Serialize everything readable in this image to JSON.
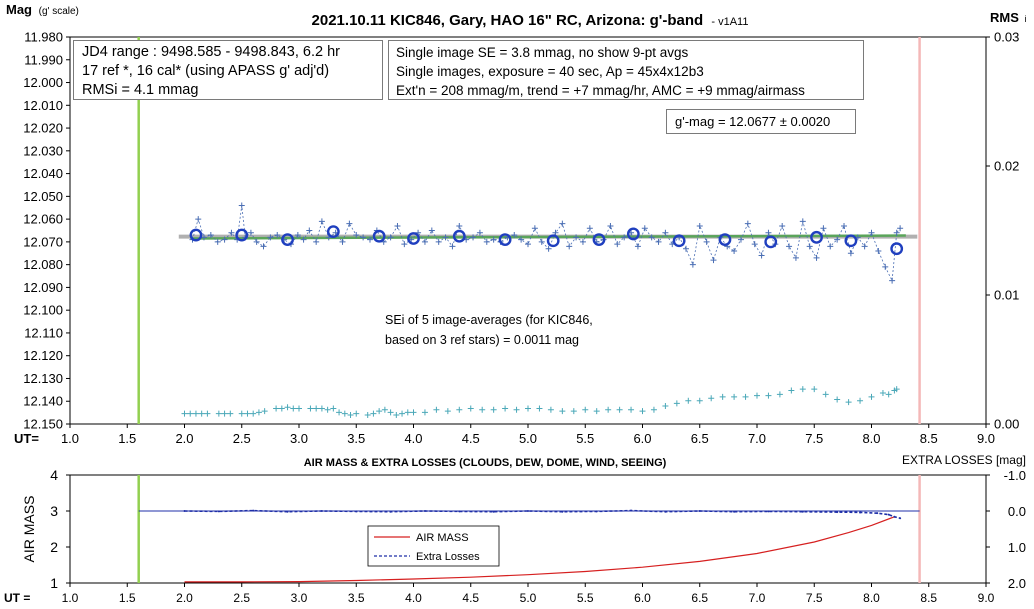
{
  "chart_data": [
    {
      "type": "scatter",
      "title": "2021.10.11 KIC846, Gary, HAO 16\" RC, Arizona: g'-band",
      "title_suffix": "- v1A11",
      "ylabel": "Mag",
      "ylabel_suffix": "(g' scale)",
      "y2label": "RMS",
      "y2label_suffix": "i",
      "xlabel": "UT=",
      "xlim": [
        1.0,
        9.0
      ],
      "ylim": [
        11.98,
        12.15
      ],
      "y_inverted": true,
      "y2lim": [
        0.0,
        0.03
      ],
      "x_ticks": [
        "1.0",
        "1.5",
        "2.0",
        "2.5",
        "3.0",
        "3.5",
        "4.0",
        "4.5",
        "5.0",
        "5.5",
        "6.0",
        "6.5",
        "7.0",
        "7.5",
        "8.0",
        "8.5",
        "9.0"
      ],
      "y_ticks": [
        "11.980",
        "11.990",
        "12.000",
        "12.010",
        "12.020",
        "12.030",
        "12.040",
        "12.050",
        "12.060",
        "12.070",
        "12.080",
        "12.090",
        "12.100",
        "12.110",
        "12.120",
        "12.130",
        "12.140",
        "12.150"
      ],
      "y2_ticks": [
        "0.03",
        "0.02",
        "0.01",
        "0.00"
      ],
      "vlines": [
        {
          "x": 1.6,
          "color": "#92d050"
        },
        {
          "x": 8.42,
          "color": "#f4b8b8"
        }
      ],
      "fit_line": {
        "x": [
          1.95,
          8.4
        ],
        "y": 12.0677
      },
      "trend_line": {
        "x": [
          2.05,
          8.3
        ],
        "y": [
          12.0685,
          12.0672
        ]
      },
      "info_boxes": {
        "left": [
          "JD4 range : 9498.585 - 9498.843,  6.2  hr",
          "17 ref *, 16 cal* (using APASS g' adj'd)",
          "RMSi = 4.1 mmag"
        ],
        "right": [
          "Single image SE = 3.8 mmag, no show  9-pt avgs",
          "Single images, exposure = 40 sec, Ap = 45x4x12b3",
          "Ext'n = 208 mmag/m, trend = +7 mmag/hr, AMC = +9 mmag/airmass"
        ],
        "result": "g'-mag = 12.0677 ± 0.0020",
        "sei": [
          "SEi of 5 image-averages (for KIC846,",
          "based on 3 ref stars) = 0.0011 mag"
        ]
      },
      "series": [
        {
          "type": "markers",
          "marker": "open-circle",
          "color": "#1f3fbf",
          "x": [
            2.1,
            2.5,
            2.9,
            3.3,
            3.7,
            4.0,
            4.4,
            4.8,
            5.22,
            5.62,
            5.92,
            6.32,
            6.72,
            7.12,
            7.52,
            7.82,
            8.22
          ],
          "y": [
            12.067,
            12.067,
            12.069,
            12.0655,
            12.0675,
            12.0685,
            12.0675,
            12.069,
            12.0695,
            12.069,
            12.0665,
            12.0695,
            12.069,
            12.07,
            12.068,
            12.0695,
            12.073
          ]
        },
        {
          "type": "crosses-dashed",
          "color": "#4a6eb4",
          "x": [
            2.07,
            2.12,
            2.17,
            2.23,
            2.29,
            2.35,
            2.41,
            2.46,
            2.5,
            2.53,
            2.58,
            2.63,
            2.69,
            2.75,
            2.81,
            2.87,
            2.93,
            2.99,
            3.04,
            3.09,
            3.15,
            3.2,
            3.26,
            3.32,
            3.38,
            3.44,
            3.5,
            3.56,
            3.62,
            3.68,
            3.74,
            3.8,
            3.86,
            3.92,
            3.98,
            4.04,
            4.1,
            4.16,
            4.22,
            4.28,
            4.34,
            4.4,
            4.46,
            4.52,
            4.58,
            4.64,
            4.7,
            4.76,
            4.82,
            4.88,
            4.94,
            5.0,
            5.06,
            5.12,
            5.18,
            5.24,
            5.3,
            5.36,
            5.42,
            5.48,
            5.54,
            5.6,
            5.66,
            5.72,
            5.78,
            5.84,
            5.9,
            5.96,
            6.02,
            6.08,
            6.14,
            6.2,
            6.26,
            6.32,
            6.38,
            6.44,
            6.5,
            6.56,
            6.62,
            6.68,
            6.74,
            6.8,
            6.86,
            6.92,
            6.98,
            7.04,
            7.1,
            7.16,
            7.22,
            7.28,
            7.34,
            7.4,
            7.46,
            7.52,
            7.58,
            7.64,
            7.7,
            7.76,
            7.82,
            7.88,
            7.94,
            8.0,
            8.06,
            8.12,
            8.18,
            8.22,
            8.25
          ],
          "y": [
            12.069,
            12.06,
            12.068,
            12.067,
            12.07,
            12.069,
            12.066,
            12.069,
            12.054,
            12.068,
            12.066,
            12.07,
            12.072,
            12.068,
            12.067,
            12.069,
            12.071,
            12.067,
            12.069,
            12.065,
            12.07,
            12.061,
            12.068,
            12.066,
            12.07,
            12.062,
            12.067,
            12.068,
            12.069,
            12.065,
            12.07,
            12.068,
            12.063,
            12.071,
            12.069,
            12.066,
            12.07,
            12.065,
            12.07,
            12.068,
            12.072,
            12.063,
            12.069,
            12.068,
            12.066,
            12.07,
            12.069,
            12.07,
            12.068,
            12.067,
            12.069,
            12.071,
            12.064,
            12.07,
            12.073,
            12.066,
            12.062,
            12.072,
            12.068,
            12.07,
            12.064,
            12.07,
            12.069,
            12.063,
            12.071,
            12.068,
            12.066,
            12.072,
            12.064,
            12.068,
            12.07,
            12.066,
            12.071,
            12.068,
            12.073,
            12.08,
            12.063,
            12.07,
            12.078,
            12.068,
            12.072,
            12.074,
            12.069,
            12.062,
            12.071,
            12.076,
            12.066,
            12.071,
            12.063,
            12.072,
            12.077,
            12.061,
            12.072,
            12.077,
            12.064,
            12.072,
            12.069,
            12.063,
            12.075,
            12.068,
            12.072,
            12.066,
            12.074,
            12.081,
            12.087,
            12.066,
            12.064
          ]
        },
        {
          "type": "crosses",
          "color": "#4aa8b8",
          "axis": "y2",
          "x": [
            2.0,
            2.05,
            2.1,
            2.15,
            2.2,
            2.3,
            2.35,
            2.4,
            2.5,
            2.55,
            2.6,
            2.65,
            2.7,
            2.8,
            2.85,
            2.9,
            2.95,
            3.0,
            3.1,
            3.15,
            3.2,
            3.25,
            3.3,
            3.35,
            3.4,
            3.45,
            3.5,
            3.6,
            3.65,
            3.7,
            3.75,
            3.8,
            3.85,
            3.9,
            3.95,
            4.0,
            4.1,
            4.2,
            4.3,
            4.4,
            4.5,
            4.6,
            4.7,
            4.8,
            4.9,
            5.0,
            5.1,
            5.2,
            5.3,
            5.4,
            5.5,
            5.6,
            5.7,
            5.8,
            5.9,
            6.0,
            6.1,
            6.2,
            6.3,
            6.4,
            6.5,
            6.6,
            6.7,
            6.8,
            6.9,
            7.0,
            7.1,
            7.2,
            7.3,
            7.4,
            7.5,
            7.6,
            7.7,
            7.8,
            7.9,
            8.0,
            8.1,
            8.15,
            8.2,
            8.22
          ],
          "y": [
            0.0008,
            0.0008,
            0.0008,
            0.0008,
            0.0008,
            0.0008,
            0.0008,
            0.0008,
            0.0008,
            0.0008,
            0.0008,
            0.0009,
            0.001,
            0.0012,
            0.0012,
            0.0013,
            0.0012,
            0.0012,
            0.0012,
            0.0012,
            0.0012,
            0.0011,
            0.0012,
            0.0009,
            0.0008,
            0.0007,
            0.0008,
            0.0007,
            0.0008,
            0.001,
            0.0011,
            0.0009,
            0.0007,
            0.0008,
            0.0009,
            0.0009,
            0.0009,
            0.0011,
            0.001,
            0.0011,
            0.0012,
            0.0011,
            0.0011,
            0.0012,
            0.0011,
            0.0012,
            0.0012,
            0.0011,
            0.001,
            0.001,
            0.0011,
            0.001,
            0.0011,
            0.0011,
            0.0011,
            0.001,
            0.0011,
            0.0014,
            0.0016,
            0.0018,
            0.0018,
            0.002,
            0.0021,
            0.0021,
            0.0021,
            0.0022,
            0.0022,
            0.0023,
            0.0026,
            0.0027,
            0.0027,
            0.0023,
            0.0019,
            0.0017,
            0.0018,
            0.0021,
            0.0024,
            0.0023,
            0.0026,
            0.0027
          ]
        }
      ]
    },
    {
      "type": "line",
      "title": "AIR MASS & EXTRA LOSSES (CLOUDS, DEW, DOME, WIND, SEEING)",
      "ylabel": "AIR MASS",
      "y2label": "EXTRA LOSSES [mag]",
      "xlabel": "UT =",
      "xlim": [
        1.0,
        9.0
      ],
      "ylim": [
        1,
        4
      ],
      "y2lim": [
        -1.0,
        2.0
      ],
      "y2_inverted": true,
      "x_ticks": [
        "1.0",
        "1.5",
        "2.0",
        "2.5",
        "3.0",
        "3.5",
        "4.0",
        "4.5",
        "5.0",
        "5.5",
        "6.0",
        "6.5",
        "7.0",
        "7.5",
        "8.0",
        "8.5",
        "9.0"
      ],
      "y_ticks": [
        "4",
        "3",
        "2",
        "1"
      ],
      "y2_ticks": [
        "-1.0",
        "0.0",
        "1.0",
        "2.0"
      ],
      "vlines": [
        {
          "x": 1.6,
          "color": "#92d050"
        },
        {
          "x": 8.42,
          "color": "#f4b8b8"
        }
      ],
      "zero_line": {
        "x": [
          1.6,
          8.42
        ],
        "y2": 0.0
      },
      "legend": {
        "placement": "center",
        "entries": [
          "AIR MASS",
          "Extra Losses"
        ]
      },
      "series": [
        {
          "name": "AIR MASS",
          "color": "#d62020",
          "x": [
            2.0,
            2.5,
            3.0,
            3.5,
            4.0,
            4.5,
            5.0,
            5.5,
            6.0,
            6.5,
            7.0,
            7.5,
            7.8,
            8.0,
            8.2
          ],
          "y": [
            1.03,
            1.03,
            1.04,
            1.07,
            1.11,
            1.16,
            1.23,
            1.32,
            1.44,
            1.6,
            1.82,
            2.14,
            2.4,
            2.6,
            2.84
          ]
        },
        {
          "name": "Extra Losses",
          "color": "#1f2fa8",
          "axis": "y2",
          "x": [
            2.0,
            2.3,
            2.6,
            2.9,
            3.2,
            3.5,
            3.8,
            4.1,
            4.4,
            4.7,
            5.0,
            5.3,
            5.6,
            5.9,
            6.2,
            6.5,
            6.8,
            7.1,
            7.4,
            7.7,
            7.9,
            8.05,
            8.15,
            8.2,
            8.25
          ],
          "y": [
            0.0,
            0.01,
            -0.01,
            0.02,
            0.0,
            0.01,
            0.02,
            0.0,
            0.01,
            0.02,
            0.0,
            0.02,
            0.01,
            -0.01,
            0.02,
            0.0,
            0.02,
            0.01,
            0.02,
            0.03,
            0.04,
            0.06,
            0.1,
            0.16,
            0.2
          ]
        }
      ]
    }
  ]
}
